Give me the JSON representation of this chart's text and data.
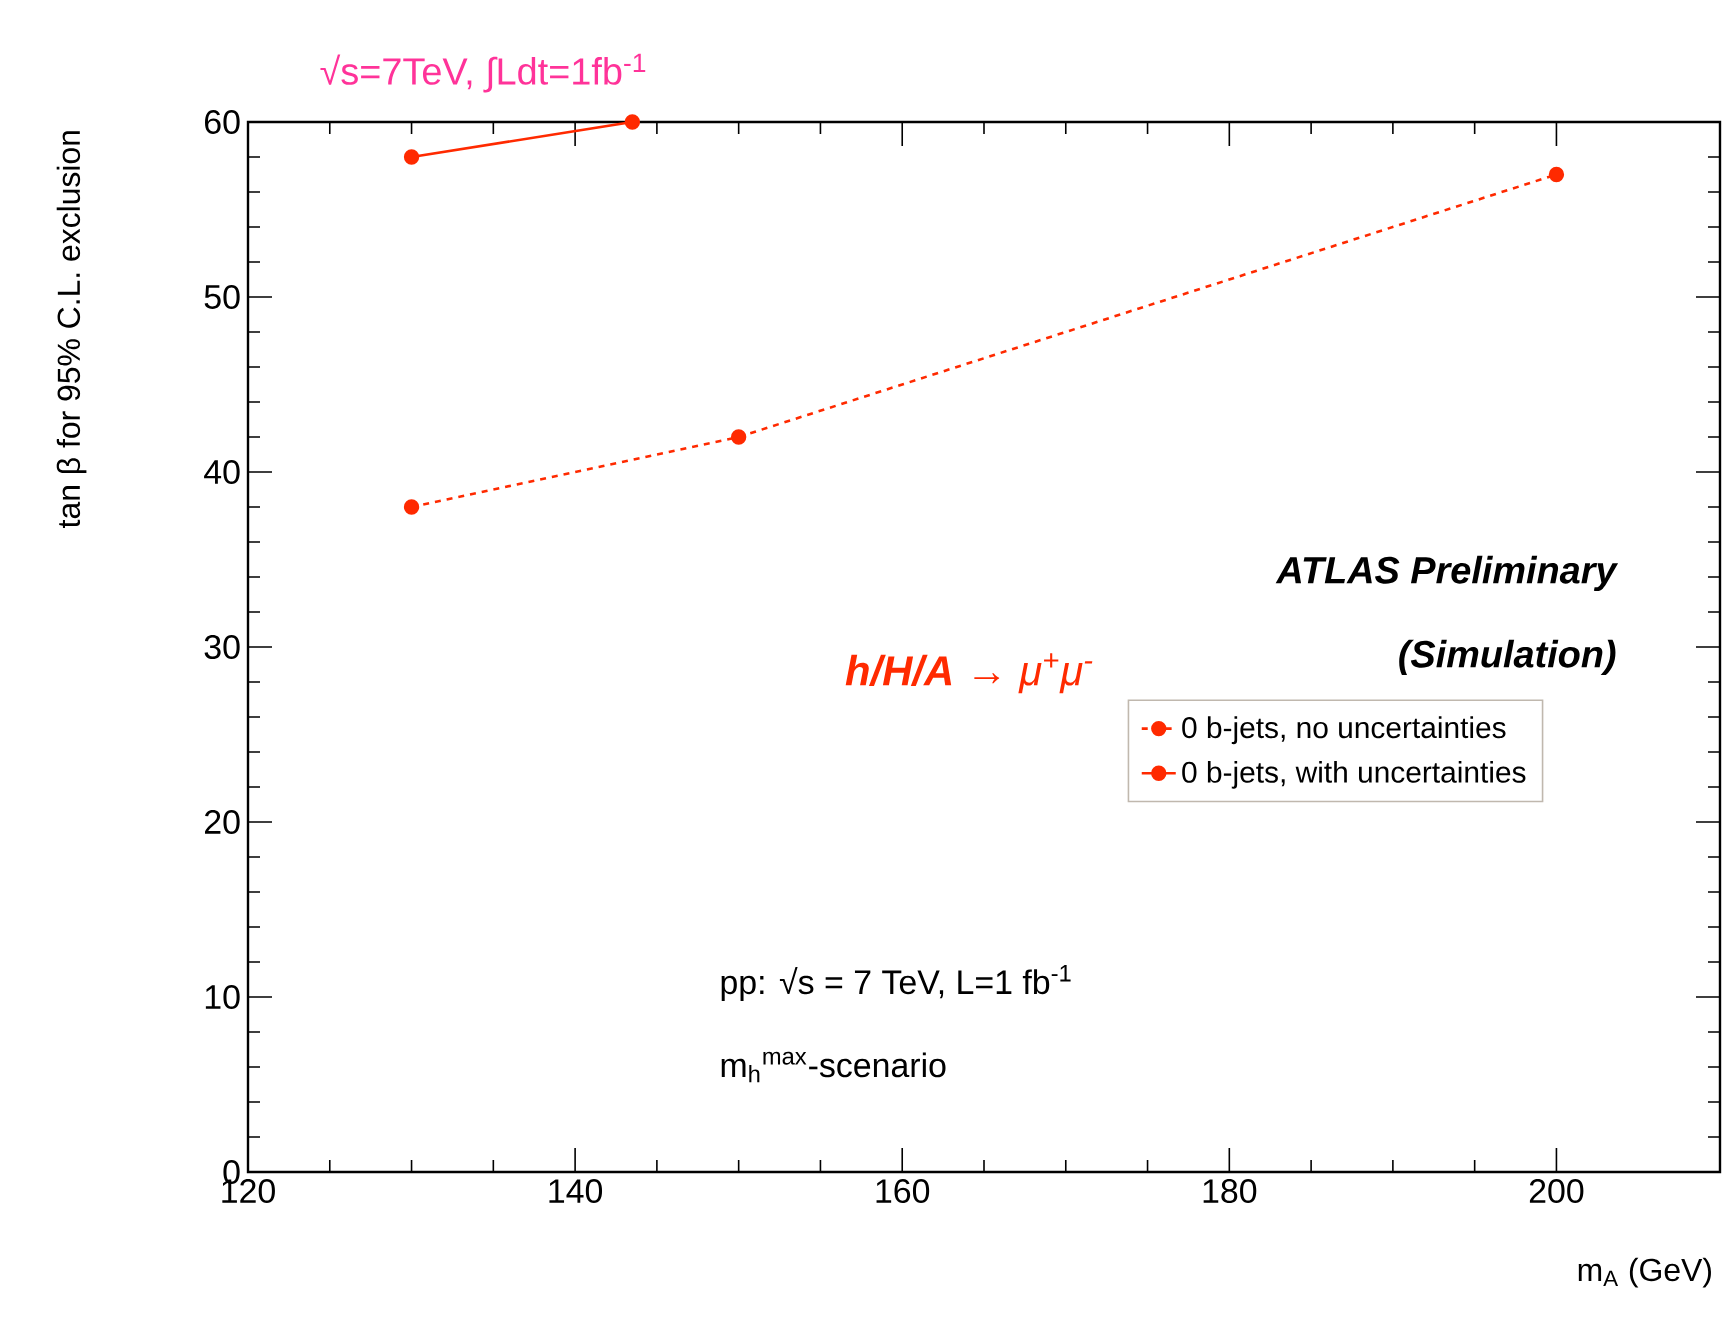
{
  "chart_data": {
    "type": "line",
    "title": "√s=7TeV, ∫Ldt=1fb$^{-1}$",
    "xlabel": "m$_{A}$ (GeV)",
    "ylabel": "tan β for 95% C.L. exclusion",
    "xlim": [
      120,
      210
    ],
    "xticks": [
      120,
      140,
      160,
      180,
      200
    ],
    "ylim": [
      0,
      60
    ],
    "yticks": [
      0,
      10,
      20,
      30,
      40,
      50,
      60
    ],
    "marker": "circle",
    "legend": "right",
    "series": [
      {
        "name": "0 b-jets, no uncertainties",
        "color": "#ff2a00",
        "line_style": "dashed",
        "x": [
          130,
          150,
          200
        ],
        "values": [
          38,
          42,
          57
        ]
      },
      {
        "name": "0 b-jets, with uncertainties",
        "color": "#ff2a00",
        "line_style": "solid",
        "x": [
          130,
          143.5
        ],
        "values": [
          58,
          60
        ]
      }
    ],
    "annotations": [
      "ATLAS Preliminary",
      "(Simulation)",
      "**h/H/A** → μ$^{+}$μ$^{-}$",
      "pp:  √s = 7 TeV,  L=1 fb$^{-1}$",
      "m$_{h}$$^{max}$-scenario"
    ]
  }
}
